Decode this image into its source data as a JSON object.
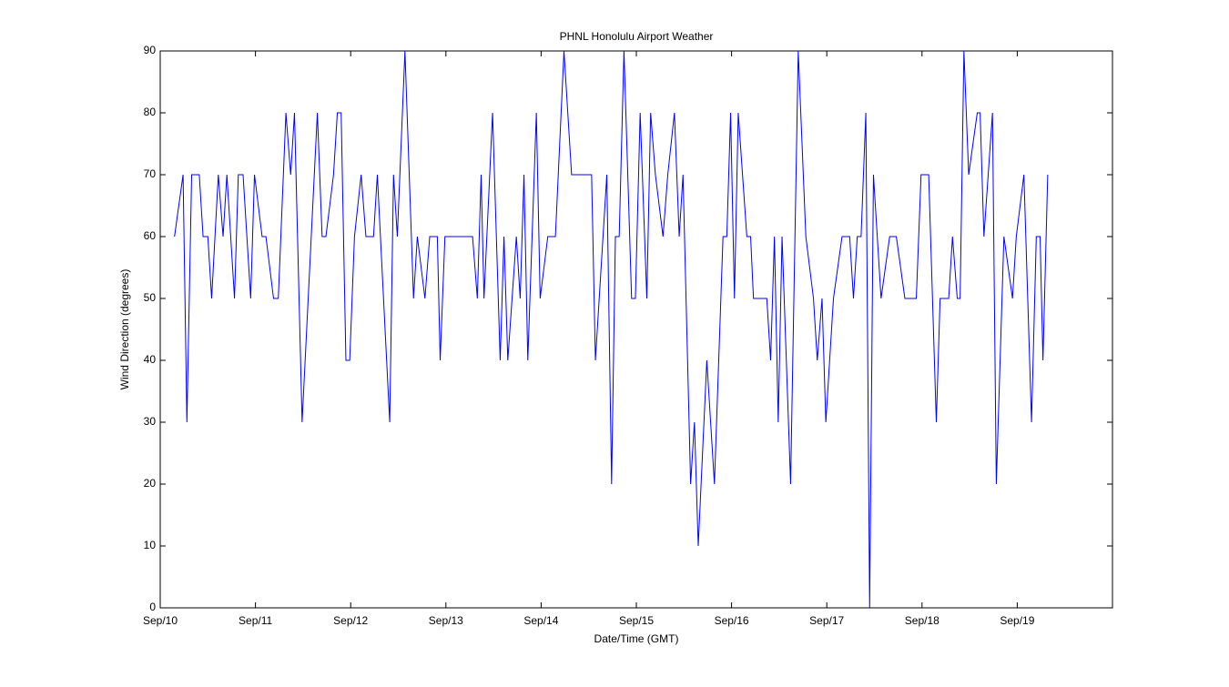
{
  "chart_data": {
    "type": "line",
    "title": "PHNL Honolulu Airport Weather",
    "x_label": "Date/Time (GMT)",
    "y_label": "Wind Direction (degrees)",
    "xlim": [
      0,
      10
    ],
    "ylim": [
      0,
      90
    ],
    "xticks": [
      {
        "value": 0,
        "label": "Sep/10"
      },
      {
        "value": 1,
        "label": "Sep/11"
      },
      {
        "value": 2,
        "label": "Sep/12"
      },
      {
        "value": 3,
        "label": "Sep/13"
      },
      {
        "value": 4,
        "label": "Sep/14"
      },
      {
        "value": 5,
        "label": "Sep/15"
      },
      {
        "value": 6,
        "label": "Sep/16"
      },
      {
        "value": 7,
        "label": "Sep/17"
      },
      {
        "value": 8,
        "label": "Sep/18"
      },
      {
        "value": 9,
        "label": "Sep/19"
      }
    ],
    "yticks": [
      0,
      10,
      20,
      30,
      40,
      50,
      60,
      70,
      80,
      90
    ],
    "grid": false,
    "x": [
      0.15,
      0.24,
      0.28,
      0.33,
      0.41,
      0.45,
      0.5,
      0.54,
      0.61,
      0.66,
      0.7,
      0.78,
      0.82,
      0.87,
      0.95,
      0.99,
      1.07,
      1.11,
      1.19,
      1.24,
      1.32,
      1.37,
      1.41,
      1.49,
      1.65,
      1.7,
      1.74,
      1.82,
      1.86,
      1.9,
      1.95,
      1.99,
      2.04,
      2.11,
      2.16,
      2.24,
      2.28,
      2.41,
      2.45,
      2.49,
      2.57,
      2.66,
      2.7,
      2.78,
      2.83,
      2.91,
      2.94,
      2.99,
      3.28,
      3.33,
      3.37,
      3.4,
      3.49,
      3.57,
      3.61,
      3.65,
      3.74,
      3.78,
      3.82,
      3.86,
      3.95,
      3.99,
      4.07,
      4.15,
      4.24,
      4.32,
      4.53,
      4.57,
      4.69,
      4.74,
      4.78,
      4.82,
      4.87,
      4.95,
      4.99,
      5.04,
      5.11,
      5.15,
      5.2,
      5.28,
      5.33,
      5.4,
      5.45,
      5.49,
      5.57,
      5.61,
      5.65,
      5.74,
      5.82,
      5.91,
      5.95,
      5.99,
      6.03,
      6.07,
      6.16,
      6.2,
      6.23,
      6.37,
      6.41,
      6.45,
      6.49,
      6.53,
      6.62,
      6.7,
      6.78,
      6.86,
      6.9,
      6.95,
      6.99,
      7.07,
      7.16,
      7.24,
      7.28,
      7.32,
      7.36,
      7.41,
      7.45,
      7.49,
      7.57,
      7.66,
      7.73,
      7.82,
      7.94,
      7.99,
      8.07,
      8.15,
      8.19,
      8.28,
      8.32,
      8.37,
      8.4,
      8.44,
      8.49,
      8.58,
      8.61,
      8.65,
      8.74,
      8.78,
      8.86,
      8.95,
      8.99,
      9.07,
      9.15,
      9.2,
      9.24,
      9.27,
      9.32
    ],
    "series": [
      {
        "color": "#0000ff",
        "values": [
          60,
          70,
          30,
          70,
          70,
          60,
          60,
          50,
          70,
          60,
          70,
          50,
          70,
          70,
          50,
          70,
          60,
          60,
          50,
          50,
          80,
          70,
          80,
          30,
          80,
          60,
          60,
          70,
          80,
          80,
          40,
          40,
          60,
          70,
          60,
          60,
          70,
          30,
          70,
          60,
          90,
          50,
          60,
          50,
          60,
          60,
          40,
          60,
          60,
          50,
          70,
          50,
          80,
          40,
          60,
          40,
          60,
          50,
          70,
          40,
          80,
          50,
          60,
          60,
          90,
          70,
          70,
          40,
          70,
          20,
          60,
          60,
          90,
          50,
          50,
          80,
          50,
          80,
          70,
          60,
          70,
          80,
          60,
          70,
          20,
          30,
          10,
          40,
          20,
          60,
          60,
          80,
          50,
          80,
          60,
          60,
          50,
          50,
          40,
          60,
          30,
          60,
          20,
          90,
          60,
          50,
          40,
          50,
          30,
          50,
          60,
          60,
          50,
          60,
          60,
          80,
          0,
          70,
          50,
          60,
          60,
          50,
          50,
          70,
          70,
          30,
          50,
          50,
          60,
          50,
          50,
          90,
          70,
          80,
          80,
          60,
          80,
          20,
          60,
          50,
          60,
          70,
          30,
          60,
          60,
          40,
          70
        ]
      }
    ]
  }
}
